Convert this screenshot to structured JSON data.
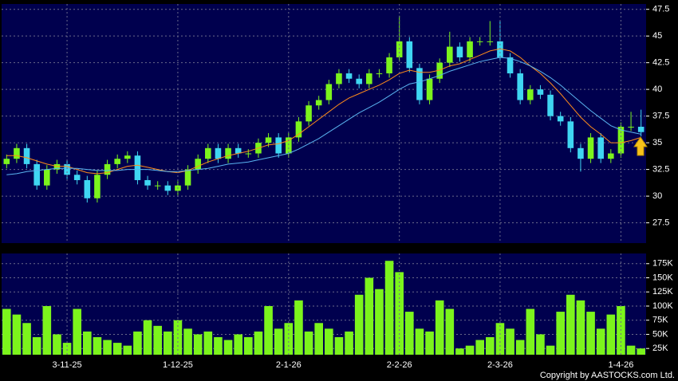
{
  "chart_data": [
    {
      "type": "candlestick",
      "ylim": [
        25.6,
        48.0
      ],
      "yticks": [
        27.5,
        30,
        32.5,
        35,
        37.5,
        40,
        42.5,
        45,
        47.5
      ],
      "grid": true,
      "up_color": "#7cf41c",
      "down_color": "#3fd6f2",
      "background": "#00004e",
      "open": [
        33,
        33.5,
        34.5,
        33,
        31,
        32.5,
        33,
        32,
        31.5,
        29.8,
        32,
        33,
        33.5,
        33.8,
        31.5,
        31,
        31,
        30.5,
        31,
        32.5,
        33.5,
        34.5,
        33.5,
        34.5,
        34,
        34,
        35,
        35.5,
        34,
        35.5,
        37,
        38.5,
        39,
        40.5,
        41.5,
        41,
        40.5,
        41.5,
        41.5,
        43,
        44.5,
        42,
        39,
        41,
        42.5,
        44,
        43,
        44.5,
        44.5,
        44.5,
        43,
        41.5,
        39,
        40,
        39.5,
        37.5,
        37,
        34.5,
        33.5,
        35.5,
        33.5,
        34,
        36.5,
        36.5
      ],
      "high": [
        33.9,
        34.9,
        34.9,
        33.4,
        32.9,
        33.4,
        33.4,
        32.4,
        31.9,
        32.4,
        33.4,
        33.9,
        34.2,
        34.2,
        31.9,
        31.4,
        31.4,
        31.4,
        32.9,
        33.9,
        34.9,
        34.9,
        34.9,
        34.9,
        34.4,
        35.4,
        35.9,
        35.9,
        35.9,
        37.4,
        38.9,
        39.4,
        40.9,
        41.9,
        41.9,
        41.4,
        41.9,
        41.9,
        43.4,
        46.9,
        44.9,
        42.4,
        41.4,
        42.9,
        45.4,
        44.4,
        44.9,
        44.9,
        46.4,
        46.4,
        43.4,
        41.9,
        40.4,
        40.4,
        39.9,
        37.9,
        37.4,
        34.9,
        35.9,
        35.9,
        34.4,
        36.9,
        37.9,
        38.1
      ],
      "low": [
        32.6,
        33.1,
        32.6,
        30.6,
        30.6,
        32.1,
        31.6,
        31.1,
        29.4,
        29.4,
        31.6,
        32.6,
        33.1,
        31.1,
        30.6,
        30.6,
        30.1,
        30.1,
        30.6,
        32.1,
        33.1,
        33.1,
        33.1,
        33.6,
        33.6,
        33.6,
        34.6,
        33.6,
        33.6,
        35.1,
        36.6,
        38.1,
        38.6,
        40.1,
        40.6,
        40.1,
        40.1,
        41.1,
        41.1,
        42.6,
        41.6,
        38.6,
        38.6,
        40.6,
        42.1,
        42.6,
        42.6,
        44.1,
        44.1,
        42.6,
        41.1,
        38.6,
        38.6,
        39.1,
        37.1,
        36.6,
        34.1,
        32.3,
        33.1,
        33.1,
        33.1,
        33.6,
        36.1,
        35.6
      ],
      "close": [
        33.5,
        34.5,
        33,
        31,
        32.5,
        33,
        32,
        31.5,
        29.8,
        32,
        33,
        33.5,
        33.8,
        31.5,
        31,
        31,
        30.5,
        31,
        32.5,
        33.5,
        34.5,
        33.5,
        34.5,
        34,
        34,
        35,
        35.5,
        34,
        35.5,
        37,
        38.5,
        39,
        40.5,
        41.5,
        41,
        40.5,
        41.5,
        41.5,
        43,
        44.5,
        42,
        39,
        41,
        42.5,
        44,
        43,
        44.5,
        44.5,
        44.5,
        43,
        41.5,
        39,
        40,
        39.5,
        37.5,
        37,
        34.5,
        33.5,
        35.5,
        33.5,
        34,
        36.5,
        36.5,
        36
      ],
      "series": [
        {
          "color": "#ff8c1a",
          "values": [
            33.8,
            33.8,
            33.6,
            33.3,
            33.0,
            32.8,
            32.8,
            32.5,
            32.2,
            32.1,
            32.2,
            32.5,
            32.8,
            32.9,
            32.7,
            32.5,
            32.3,
            32.2,
            32.4,
            32.8,
            33.2,
            33.5,
            33.8,
            34.0,
            34.2,
            34.5,
            34.8,
            34.9,
            35.2,
            35.8,
            36.5,
            37.2,
            37.9,
            38.6,
            39.2,
            39.6,
            40.0,
            40.4,
            40.9,
            41.5,
            41.8,
            41.6,
            41.6,
            41.8,
            42.2,
            42.4,
            42.8,
            43.2,
            43.6,
            43.8,
            43.6,
            43.0,
            42.2,
            41.5,
            40.6,
            39.6,
            38.5,
            37.4,
            36.5,
            35.8,
            35.0,
            35.0,
            35.2,
            35.5
          ]
        },
        {
          "color": "#5ab4f0",
          "values": [
            32.0,
            32.1,
            32.3,
            32.4,
            32.5,
            32.6,
            32.6,
            32.6,
            32.5,
            32.4,
            32.4,
            32.4,
            32.5,
            32.5,
            32.5,
            32.4,
            32.3,
            32.3,
            32.4,
            32.5,
            32.6,
            32.8,
            33.0,
            33.1,
            33.2,
            33.4,
            33.6,
            33.8,
            34.0,
            34.4,
            34.9,
            35.4,
            36.0,
            36.6,
            37.2,
            37.8,
            38.3,
            38.8,
            39.4,
            40.0,
            40.5,
            40.7,
            41.0,
            41.3,
            41.7,
            42.0,
            42.3,
            42.6,
            42.8,
            43.0,
            42.9,
            42.6,
            42.2,
            41.7,
            41.1,
            40.4,
            39.6,
            38.8,
            38.0,
            37.3,
            36.6,
            36.2,
            36.0,
            35.8
          ]
        }
      ]
    },
    {
      "type": "bar",
      "ylim": [
        14000,
        193000
      ],
      "yticks": [
        {
          "value": 25000,
          "label": "25K"
        },
        {
          "value": 50000,
          "label": "50K"
        },
        {
          "value": 75000,
          "label": "75K"
        },
        {
          "value": 100000,
          "label": "100K"
        },
        {
          "value": 125000,
          "label": "125K"
        },
        {
          "value": 150000,
          "label": "150K"
        },
        {
          "value": 175000,
          "label": "175K"
        }
      ],
      "grid": true,
      "color": "#7cf41c",
      "background": "#00004e",
      "categories": [
        null,
        null,
        null,
        null,
        null,
        null,
        "3-11-25",
        null,
        null,
        null,
        null,
        null,
        null,
        null,
        null,
        null,
        null,
        "1-12-25",
        null,
        null,
        null,
        null,
        null,
        null,
        null,
        null,
        null,
        null,
        "2-1-26",
        null,
        null,
        null,
        null,
        null,
        null,
        null,
        null,
        null,
        null,
        "2-2-26",
        null,
        null,
        null,
        null,
        null,
        null,
        null,
        null,
        null,
        "2-3-26",
        null,
        null,
        null,
        null,
        null,
        null,
        null,
        null,
        null,
        null,
        null,
        "1-4-26",
        null,
        null
      ],
      "values": [
        95000,
        85000,
        70000,
        45000,
        100000,
        50000,
        35000,
        95000,
        55000,
        45000,
        40000,
        35000,
        30000,
        55000,
        75000,
        65000,
        55000,
        75000,
        60000,
        50000,
        55000,
        45000,
        40000,
        50000,
        45000,
        55000,
        100000,
        60000,
        70000,
        110000,
        55000,
        70000,
        60000,
        45000,
        55000,
        120000,
        150000,
        130000,
        180000,
        160000,
        90000,
        60000,
        55000,
        110000,
        95000,
        25000,
        30000,
        40000,
        45000,
        70000,
        60000,
        40000,
        95000,
        50000,
        30000,
        90000,
        120000,
        110000,
        90000,
        60000,
        85000,
        100000,
        30000,
        25000
      ]
    }
  ],
  "copyright": "Copyright by AASTOCKS.com Ltd."
}
